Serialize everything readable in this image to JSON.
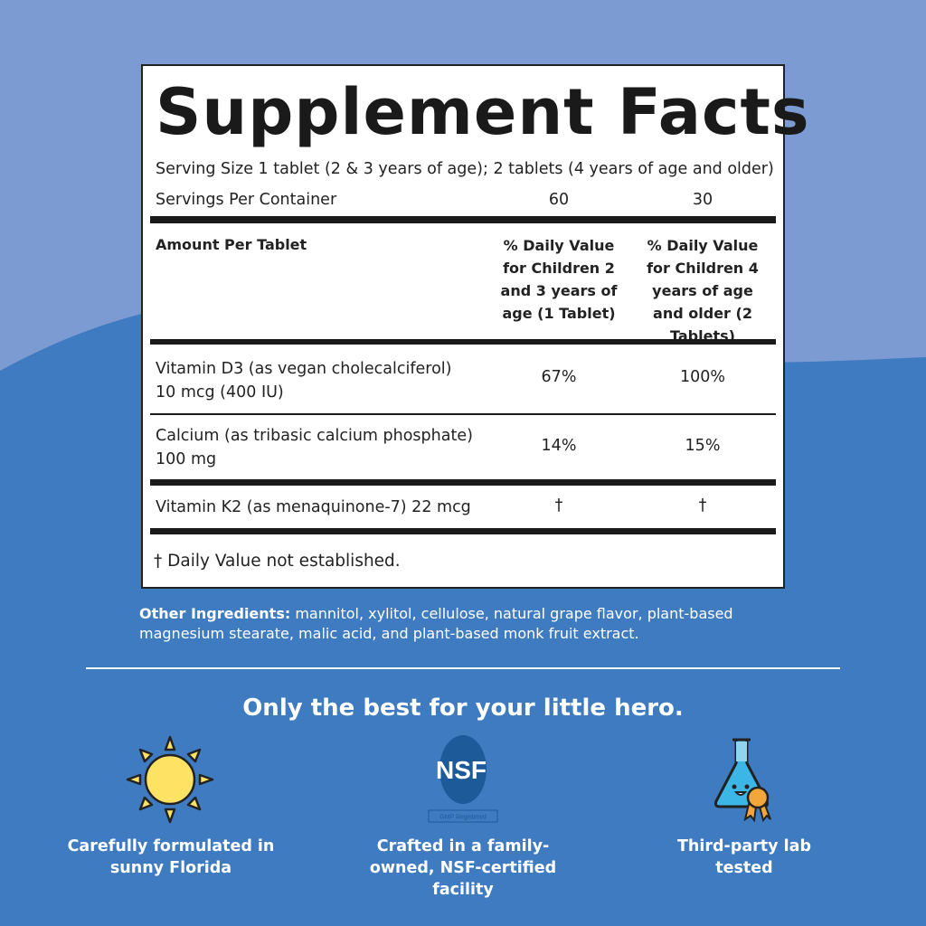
{
  "colors": {
    "bg_top": "#7b9bd2",
    "bg_bottom": "#3f7bc0",
    "nsf_blue": "#1d5a9a",
    "sun": "#fde264",
    "flask": "#3bb6e6",
    "ribbon": "#f4a63a"
  },
  "facts": {
    "title": "Supplement Facts",
    "serving_size": "Serving Size 1 tablet (2 & 3 years of age); 2 tablets (4 years of age and older)",
    "servings_label": "Servings Per Container",
    "servings": [
      "60",
      "30"
    ],
    "header": {
      "amount": "Amount Per Tablet",
      "col1": "% Daily Value for Children 2 and 3 years of age (1 Tablet)",
      "col2": "% Daily Value for Children 4 years of age and older (2 Tablets)"
    },
    "rows": [
      {
        "name": "Vitamin D3 (as vegan cholecalciferol)",
        "amount": "10 mcg (400 IU)",
        "dv1": "67%",
        "dv2": "100%"
      },
      {
        "name": "Calcium (as tribasic calcium phosphate)",
        "amount": "100 mg",
        "dv1": "14%",
        "dv2": "15%"
      },
      {
        "name": "Vitamin K2 (as menaquinone-7) 22 mcg",
        "amount": "",
        "dv1": "†",
        "dv2": "†"
      }
    ],
    "footnote": "† Daily Value not established."
  },
  "other_ingredients": {
    "label": "Other Ingredients:",
    "text": " mannitol, xylitol, cellulose, natural grape flavor, plant-based magnesium stearate, malic acid, and plant-based monk fruit extract."
  },
  "tagline": "Only the best for your little hero.",
  "features": [
    {
      "icon": "sun-icon",
      "caption": "Carefully formulated in sunny Florida"
    },
    {
      "icon": "nsf-logo",
      "logo_text": "NSF",
      "badge": "GMP Registered",
      "caption": "Crafted in a family-owned, NSF-certified facility"
    },
    {
      "icon": "flask-icon",
      "caption": "Third-party lab tested"
    }
  ]
}
